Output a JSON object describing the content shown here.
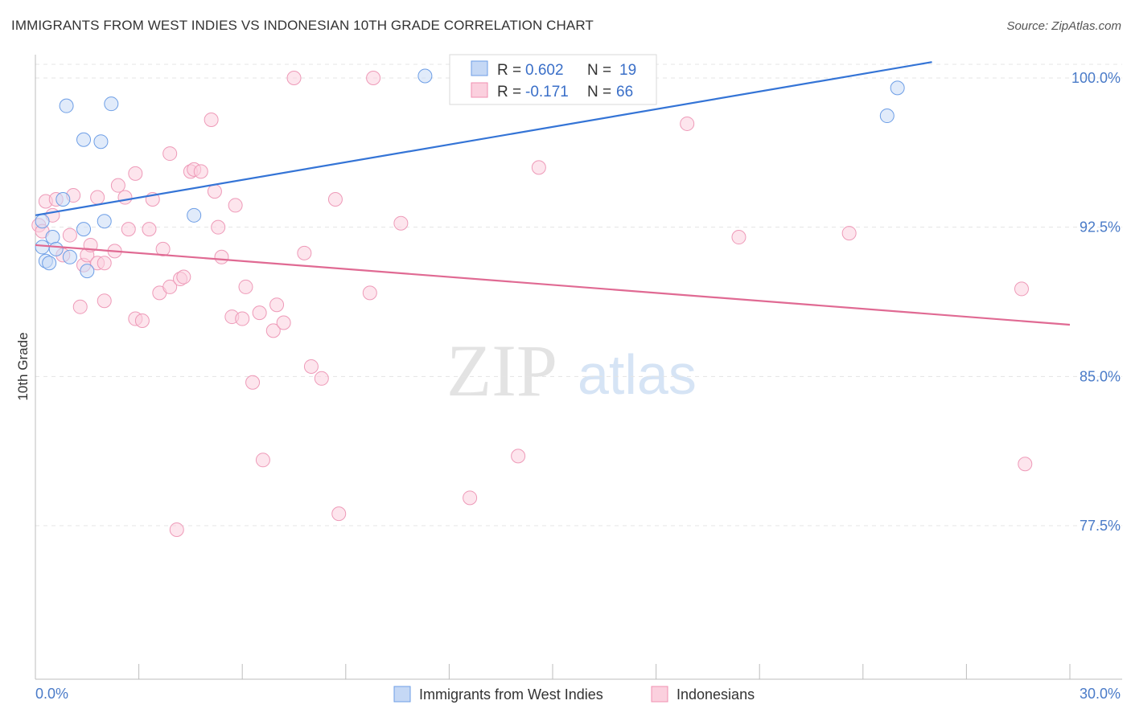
{
  "title": "IMMIGRANTS FROM WEST INDIES VS INDONESIAN 10TH GRADE CORRELATION CHART",
  "source": "Source: ZipAtlas.com",
  "watermark": {
    "zip": "ZIP",
    "atlas": "atlas"
  },
  "chart_data": {
    "type": "scatter",
    "title": "IMMIGRANTS FROM WEST INDIES VS INDONESIAN 10TH GRADE CORRELATION CHART",
    "xlabel": "",
    "ylabel": "10th Grade",
    "xlim": [
      0,
      30
    ],
    "ylim": [
      70.0,
      101.0
    ],
    "x_tick_labels": {
      "min": "0.0%",
      "max": "30.0%"
    },
    "y_ticks": [
      {
        "value": 100.0,
        "label": "100.0%"
      },
      {
        "value": 92.5,
        "label": "92.5%"
      },
      {
        "value": 85.0,
        "label": "85.0%"
      },
      {
        "value": 77.5,
        "label": "77.5%"
      }
    ],
    "legend": [
      {
        "label": "R = ",
        "r": "0.602",
        "n_label": "N = ",
        "n": "19",
        "color": "#6d9ee6"
      },
      {
        "label": "R = ",
        "r": "-0.171",
        "n_label": "N = ",
        "n": "66",
        "color": "#f08fb0"
      }
    ],
    "series": [
      {
        "name": "Immigrants from West Indies",
        "color": "#8fb4ec",
        "line_color": "#3474d6",
        "trend": {
          "x": [
            0,
            26
          ],
          "y": [
            93.1,
            100.8
          ]
        },
        "points": [
          [
            0.2,
            91.5
          ],
          [
            0.2,
            92.8
          ],
          [
            0.3,
            90.8
          ],
          [
            0.4,
            90.7
          ],
          [
            0.5,
            92.0
          ],
          [
            0.6,
            91.4
          ],
          [
            0.8,
            93.9
          ],
          [
            0.9,
            98.6
          ],
          [
            1.0,
            91.0
          ],
          [
            1.4,
            92.4
          ],
          [
            1.4,
            96.9
          ],
          [
            1.5,
            90.3
          ],
          [
            1.9,
            96.8
          ],
          [
            2.0,
            92.8
          ],
          [
            2.2,
            98.7
          ],
          [
            4.6,
            93.1
          ],
          [
            11.3,
            100.1
          ],
          [
            24.7,
            98.1
          ],
          [
            25.0,
            99.5
          ]
        ]
      },
      {
        "name": "Indonesians",
        "color": "#f5adc6",
        "line_color": "#e06a93",
        "trend": {
          "x": [
            0,
            30
          ],
          "y": [
            91.6,
            87.6
          ]
        },
        "points": [
          [
            0.1,
            92.6
          ],
          [
            0.2,
            92.3
          ],
          [
            0.3,
            93.8
          ],
          [
            0.5,
            93.1
          ],
          [
            0.6,
            93.9
          ],
          [
            0.8,
            91.1
          ],
          [
            1.0,
            92.1
          ],
          [
            1.1,
            94.1
          ],
          [
            1.3,
            88.5
          ],
          [
            1.4,
            90.6
          ],
          [
            1.5,
            91.1
          ],
          [
            1.6,
            91.6
          ],
          [
            1.8,
            94.0
          ],
          [
            1.8,
            90.7
          ],
          [
            2.0,
            88.8
          ],
          [
            2.0,
            90.7
          ],
          [
            2.3,
            91.3
          ],
          [
            2.4,
            94.6
          ],
          [
            2.6,
            94.0
          ],
          [
            2.7,
            92.4
          ],
          [
            2.9,
            95.2
          ],
          [
            2.9,
            87.9
          ],
          [
            3.1,
            87.8
          ],
          [
            3.3,
            92.4
          ],
          [
            3.4,
            93.9
          ],
          [
            3.6,
            89.2
          ],
          [
            3.7,
            91.4
          ],
          [
            3.9,
            89.5
          ],
          [
            3.9,
            96.2
          ],
          [
            4.1,
            77.3
          ],
          [
            4.2,
            89.9
          ],
          [
            4.3,
            90.0
          ],
          [
            4.5,
            95.3
          ],
          [
            4.6,
            95.4
          ],
          [
            4.8,
            95.3
          ],
          [
            5.1,
            97.9
          ],
          [
            5.2,
            94.3
          ],
          [
            5.3,
            92.5
          ],
          [
            5.4,
            91.0
          ],
          [
            5.7,
            88.0
          ],
          [
            5.8,
            93.6
          ],
          [
            6.0,
            87.9
          ],
          [
            6.1,
            89.5
          ],
          [
            6.3,
            84.7
          ],
          [
            6.5,
            88.2
          ],
          [
            6.6,
            80.8
          ],
          [
            6.9,
            87.3
          ],
          [
            7.0,
            88.6
          ],
          [
            7.2,
            87.7
          ],
          [
            7.5,
            100.0
          ],
          [
            7.8,
            91.2
          ],
          [
            8.0,
            85.5
          ],
          [
            8.3,
            84.9
          ],
          [
            8.7,
            93.9
          ],
          [
            8.8,
            78.1
          ],
          [
            9.7,
            89.2
          ],
          [
            9.8,
            100.0
          ],
          [
            10.6,
            92.7
          ],
          [
            12.6,
            78.9
          ],
          [
            14.0,
            81.0
          ],
          [
            14.6,
            95.5
          ],
          [
            18.9,
            97.7
          ],
          [
            20.4,
            92.0
          ],
          [
            23.6,
            92.2
          ],
          [
            28.6,
            89.4
          ],
          [
            28.7,
            80.6
          ]
        ]
      }
    ]
  }
}
